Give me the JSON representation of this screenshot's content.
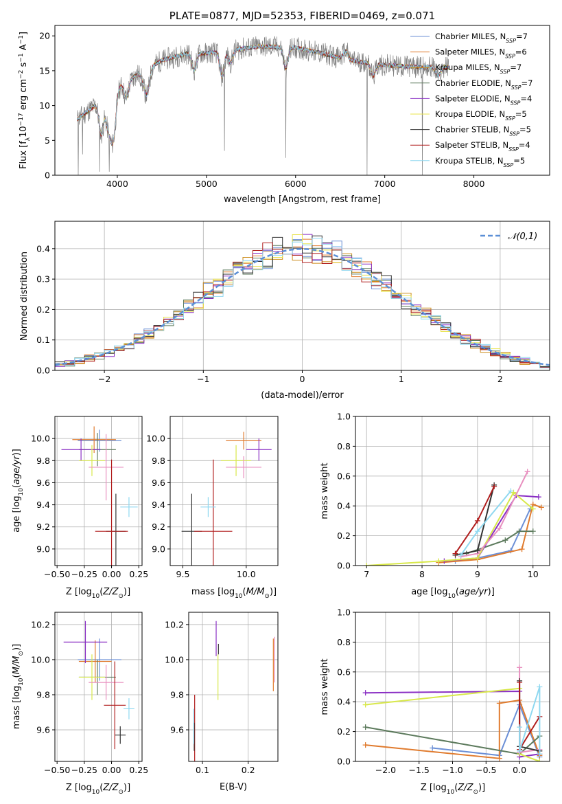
{
  "chart_data": [
    {
      "id": "spectrum",
      "type": "line",
      "title": "PLATE=0877, MJD=52353, FIBERID=0469, z=0.071",
      "xlabel": "wavelength [Angstrom, rest frame]",
      "ylabel": "Flux [f_λ 10^-17 erg cm^-2 s^-1 A^-1]",
      "xlim": [
        3300,
        8850
      ],
      "ylim": [
        0,
        21.5
      ],
      "xticks": [
        4000,
        5000,
        6000,
        7000,
        8000
      ],
      "yticks": [
        0,
        5,
        10,
        15,
        20
      ],
      "legend_position": "top-right",
      "series": [
        {
          "name": "Chabrier MILES, N_SSP=7",
          "color": "#6b8fd6"
        },
        {
          "name": "Salpeter MILES, N_SSP=6",
          "color": "#e07b2e"
        },
        {
          "name": "Kroupa MILES, N_SSP=7",
          "color": "#cc8c1a"
        },
        {
          "name": "Chabrier ELODIE, N_SSP=7",
          "color": "#5c7a5c"
        },
        {
          "name": "Salpeter ELODIE, N_SSP=4",
          "color": "#8a2fc4"
        },
        {
          "name": "Kroupa ELODIE, N_SSP=5",
          "color": "#e8e34a"
        },
        {
          "name": "Chabrier STELIB, N_SSP=5",
          "color": "#333333"
        },
        {
          "name": "Salpeter STELIB, N_SSP=4",
          "color": "#b01c1c"
        },
        {
          "name": "Kroupa STELIB, N_SSP=5",
          "color": "#8fd8f0"
        }
      ],
      "data_color": "#7f7f7f",
      "continuum_points": [
        [
          3550,
          8
        ],
        [
          3700,
          9.5
        ],
        [
          3900,
          11.5
        ],
        [
          4100,
          13.5
        ],
        [
          4300,
          15
        ],
        [
          4500,
          16.5
        ],
        [
          4800,
          17.5
        ],
        [
          5000,
          17.5
        ],
        [
          5300,
          18
        ],
        [
          5600,
          18.5
        ],
        [
          6000,
          18.3
        ],
        [
          6300,
          17.5
        ],
        [
          6600,
          16.5
        ],
        [
          7000,
          15.8
        ],
        [
          7400,
          15.5
        ],
        [
          7700,
          15.5
        ]
      ]
    },
    {
      "id": "residuals",
      "type": "histogram",
      "xlabel": "(data-model)/error",
      "ylabel": "Normed distribution",
      "xlim": [
        -2.5,
        2.5
      ],
      "ylim": [
        0,
        0.49
      ],
      "xticks": [
        -2,
        -1,
        0,
        1,
        2
      ],
      "yticks": [
        0.0,
        0.1,
        0.2,
        0.3,
        0.4
      ],
      "grid": true,
      "legend_position": "top-right",
      "reference_curve": {
        "name": "𝒩(0,1)",
        "color": "#5b8fd6",
        "style": "dashed"
      },
      "bin_width": 0.1
    },
    {
      "id": "age-vs-Z",
      "type": "scatter",
      "xlabel": "Z [log10(Z/Z⊙)]",
      "ylabel": "age [log10(age/yr)]",
      "xlim": [
        -0.52,
        0.28
      ],
      "ylim": [
        8.85,
        10.2
      ],
      "xticks": [
        -0.5,
        -0.25,
        0.0,
        0.25
      ],
      "yticks": [
        9.0,
        9.2,
        9.4,
        9.6,
        9.8,
        10.0
      ],
      "grid": true,
      "points": [
        {
          "x": -0.11,
          "y": 9.98,
          "xerr": 0.2,
          "yerr": 0.1,
          "color": "#6b8fd6"
        },
        {
          "x": -0.16,
          "y": 9.99,
          "xerr": 0.2,
          "yerr": 0.12,
          "color": "#e07b2e"
        },
        {
          "x": -0.13,
          "y": 9.9,
          "xerr": 0.17,
          "yerr": 0.15,
          "color": "#5c7a5c"
        },
        {
          "x": -0.28,
          "y": 9.9,
          "xerr": 0.18,
          "yerr": 0.1,
          "color": "#8a2fc4"
        },
        {
          "x": -0.18,
          "y": 9.8,
          "xerr": 0.12,
          "yerr": 0.14,
          "color": "#d8e84a"
        },
        {
          "x": -0.05,
          "y": 9.74,
          "xerr": 0.16,
          "yerr": 0.3,
          "color": "#e88fbf"
        },
        {
          "x": 0.04,
          "y": 9.16,
          "xerr": 0.09,
          "yerr": 0.34,
          "color": "#333333"
        },
        {
          "x": 0.0,
          "y": 9.16,
          "xerr": 0.15,
          "yerr": 0.65,
          "color": "#b01c1c"
        },
        {
          "x": 0.16,
          "y": 9.38,
          "xerr": 0.08,
          "yerr": 0.09,
          "color": "#8fd8f0"
        }
      ]
    },
    {
      "id": "age-vs-mass",
      "type": "scatter",
      "xlabel": "mass [log10(M/M⊙)]",
      "ylabel": "",
      "xlim": [
        9.4,
        10.25
      ],
      "ylim": [
        8.85,
        10.2
      ],
      "xticks": [
        9.5,
        10.0
      ],
      "yticks": [
        9.0,
        9.2,
        9.4,
        9.6,
        9.8,
        10.0
      ],
      "grid": true,
      "points": [
        {
          "x": 9.98,
          "y": 9.98,
          "xerr": 0.14,
          "yerr": 0.08,
          "color": "#e07b2e"
        },
        {
          "x": 10.1,
          "y": 9.9,
          "xerr": 0.1,
          "yerr": 0.1,
          "color": "#8a2fc4"
        },
        {
          "x": 9.92,
          "y": 9.8,
          "xerr": 0.12,
          "yerr": 0.14,
          "color": "#d8e84a"
        },
        {
          "x": 9.98,
          "y": 9.74,
          "xerr": 0.14,
          "yerr": 0.1,
          "color": "#e88fbf"
        },
        {
          "x": 9.57,
          "y": 9.16,
          "xerr": 0.08,
          "yerr": 0.34,
          "color": "#333333"
        },
        {
          "x": 9.74,
          "y": 9.16,
          "xerr": 0.15,
          "yerr": 0.65,
          "color": "#b01c1c"
        },
        {
          "x": 9.7,
          "y": 9.38,
          "xerr": 0.06,
          "yerr": 0.09,
          "color": "#8fd8f0"
        }
      ]
    },
    {
      "id": "massweight-vs-age",
      "type": "line",
      "xlabel": "age [log10(age/yr)]",
      "ylabel": "mass weight",
      "xlim": [
        6.8,
        10.3
      ],
      "ylim": [
        0,
        1.0
      ],
      "xticks": [
        7,
        8,
        9,
        10
      ],
      "yticks": [
        0.0,
        0.2,
        0.4,
        0.6,
        0.8,
        1.0
      ],
      "grid": true,
      "series": [
        {
          "color": "#6b8fd6",
          "x": [
            8.6,
            9.0,
            9.6,
            9.95
          ],
          "y": [
            0.03,
            0.05,
            0.1,
            0.38
          ]
        },
        {
          "color": "#e07b2e",
          "x": [
            8.3,
            9.0,
            9.8,
            10.0,
            10.15
          ],
          "y": [
            0.02,
            0.04,
            0.11,
            0.41,
            0.39
          ]
        },
        {
          "color": "#5c7a5c",
          "x": [
            8.8,
            9.5,
            9.75,
            10.0
          ],
          "y": [
            0.08,
            0.17,
            0.23,
            0.23
          ]
        },
        {
          "color": "#8a2fc4",
          "x": [
            8.4,
            9.0,
            9.7,
            10.1
          ],
          "y": [
            0.03,
            0.05,
            0.47,
            0.46
          ]
        },
        {
          "color": "#d8e84a",
          "x": [
            7.0,
            8.3,
            9.0,
            9.65,
            10.0
          ],
          "y": [
            0.0,
            0.03,
            0.05,
            0.49,
            0.38
          ]
        },
        {
          "color": "#e88fbf",
          "x": [
            8.7,
            9.0,
            9.4,
            9.9
          ],
          "y": [
            0.06,
            0.08,
            0.25,
            0.63
          ]
        },
        {
          "color": "#333333",
          "x": [
            8.6,
            9.0,
            9.3
          ],
          "y": [
            0.07,
            0.1,
            0.54
          ]
        },
        {
          "color": "#b01c1c",
          "x": [
            8.6,
            9.0,
            9.3
          ],
          "y": [
            0.08,
            0.3,
            0.53
          ]
        },
        {
          "color": "#8fd8f0",
          "x": [
            8.7,
            9.0,
            9.6
          ],
          "y": [
            0.07,
            0.23,
            0.5
          ]
        }
      ]
    },
    {
      "id": "mass-vs-Z",
      "type": "scatter",
      "xlabel": "Z [log10(Z/Z⊙)]",
      "ylabel": "mass [log10(M/M⊙)]",
      "xlim": [
        -0.52,
        0.28
      ],
      "ylim": [
        9.42,
        10.27
      ],
      "xticks": [
        -0.5,
        -0.25,
        0.0,
        0.25
      ],
      "yticks": [
        9.6,
        9.8,
        10.0,
        10.2
      ],
      "grid": true,
      "points": [
        {
          "x": -0.11,
          "y": 10.0,
          "xerr": 0.2,
          "yerr": 0.12,
          "color": "#6b8fd6"
        },
        {
          "x": -0.15,
          "y": 9.99,
          "xerr": 0.15,
          "yerr": 0.12,
          "color": "#e07b2e"
        },
        {
          "x": -0.13,
          "y": 9.9,
          "xerr": 0.17,
          "yerr": 0.1,
          "color": "#5c7a5c"
        },
        {
          "x": -0.24,
          "y": 10.1,
          "xerr": 0.2,
          "yerr": 0.12,
          "color": "#8a2fc4"
        },
        {
          "x": -0.18,
          "y": 9.9,
          "xerr": 0.12,
          "yerr": 0.13,
          "color": "#d8e84a"
        },
        {
          "x": -0.05,
          "y": 9.87,
          "xerr": 0.16,
          "yerr": 0.1,
          "color": "#e88fbf"
        },
        {
          "x": 0.08,
          "y": 9.57,
          "xerr": 0.05,
          "yerr": 0.05,
          "color": "#333333"
        },
        {
          "x": 0.03,
          "y": 9.74,
          "xerr": 0.1,
          "yerr": 0.25,
          "color": "#b01c1c"
        },
        {
          "x": 0.16,
          "y": 9.72,
          "xerr": 0.05,
          "yerr": 0.06,
          "color": "#8fd8f0"
        }
      ]
    },
    {
      "id": "mass-vs-ebv",
      "type": "scatter",
      "xlabel": "E(B-V)",
      "ylabel": "",
      "xlim": [
        0.07,
        0.265
      ],
      "ylim": [
        9.42,
        10.27
      ],
      "xticks": [
        0.1,
        0.2
      ],
      "yticks": [
        9.6,
        9.8,
        10.0,
        10.2
      ],
      "grid": true,
      "points": [
        {
          "x": 0.083,
          "y": 9.6,
          "yerr": 0.2,
          "color": "#b01c1c"
        },
        {
          "x": 0.082,
          "y": 9.56,
          "yerr": 0.08,
          "color": "#333333"
        },
        {
          "x": 0.081,
          "y": 9.62,
          "yerr": 0.1,
          "color": "#8fd8f0"
        },
        {
          "x": 0.13,
          "y": 10.12,
          "yerr": 0.1,
          "color": "#8a2fc4"
        },
        {
          "x": 0.134,
          "y": 9.9,
          "yerr": 0.13,
          "color": "#d8e84a"
        },
        {
          "x": 0.135,
          "y": 10.06,
          "yerr": 0.03,
          "color": "#333333"
        },
        {
          "x": 0.255,
          "y": 9.97,
          "yerr": 0.15,
          "color": "#e07b2e"
        },
        {
          "x": 0.258,
          "y": 10.0,
          "yerr": 0.13,
          "color": "#e88fbf"
        }
      ]
    },
    {
      "id": "massweight-vs-Z",
      "type": "line",
      "xlabel": "Z [log10(Z/Z⊙)]",
      "ylabel": "mass weight",
      "xlim": [
        -2.45,
        0.45
      ],
      "ylim": [
        0,
        1.0
      ],
      "xticks": [
        -2.0,
        -1.5,
        -1.0,
        -0.5,
        0.0
      ],
      "yticks": [
        0.0,
        0.2,
        0.4,
        0.6,
        0.8,
        1.0
      ],
      "grid": true,
      "series": [
        {
          "color": "#6b8fd6",
          "x": [
            -1.3,
            -0.3,
            0.0,
            0.3
          ],
          "y": [
            0.09,
            0.04,
            0.38,
            0.03
          ]
        },
        {
          "color": "#e07b2e",
          "x": [
            -2.3,
            -0.3,
            -0.3,
            0.0,
            0.3
          ],
          "y": [
            0.11,
            0.02,
            0.39,
            0.41,
            0.04
          ]
        },
        {
          "color": "#5c7a5c",
          "x": [
            -2.3,
            0.0,
            0.3
          ],
          "y": [
            0.23,
            0.05,
            0.17
          ]
        },
        {
          "color": "#8a2fc4",
          "x": [
            -2.3,
            0.0,
            0.0,
            0.3
          ],
          "y": [
            0.46,
            0.47,
            0.03,
            0.05
          ]
        },
        {
          "color": "#d8e84a",
          "x": [
            -2.3,
            0.0,
            0.0,
            0.3
          ],
          "y": [
            0.38,
            0.49,
            0.05,
            0.0
          ]
        },
        {
          "color": "#e88fbf",
          "x": [
            0.0,
            0.0,
            0.3
          ],
          "y": [
            0.63,
            0.06,
            0.08
          ]
        },
        {
          "color": "#333333",
          "x": [
            0.0,
            0.0,
            0.3
          ],
          "y": [
            0.54,
            0.1,
            0.07
          ]
        },
        {
          "color": "#b01c1c",
          "x": [
            0.0,
            0.0,
            0.3
          ],
          "y": [
            0.53,
            0.08,
            0.3
          ]
        },
        {
          "color": "#8fd8f0",
          "x": [
            0.0,
            0.0,
            0.3,
            0.3
          ],
          "y": [
            0.23,
            0.07,
            0.5,
            0.05
          ]
        }
      ]
    }
  ]
}
